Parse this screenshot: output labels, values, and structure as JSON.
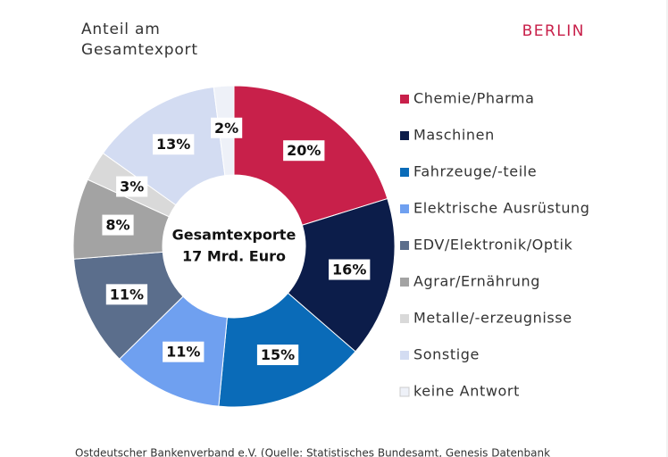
{
  "chart_data": {
    "type": "pie",
    "title_lines": [
      "Anteil am",
      "Gesamtexport"
    ],
    "region": "BERLIN",
    "center_text": [
      "Gesamtexporte",
      "17 Mrd. Euro"
    ],
    "categories": [
      "Chemie/Pharma",
      "Maschinen",
      "Fahrzeuge/-teile",
      "Elektrische Ausrüstung",
      "EDV/Elektronik/Optik",
      "Agrar/Ernährung",
      "Metalle/-erzeugnisse",
      "Sonstige",
      "keine Antwort"
    ],
    "values": [
      20,
      16,
      15,
      11,
      11,
      8,
      3,
      13,
      2
    ],
    "value_labels": [
      "20%",
      "16%",
      "15%",
      "11%",
      "11%",
      "8%",
      "3%",
      "13%",
      "2%"
    ],
    "colors": [
      "#c8204a",
      "#0c1d4a",
      "#0a6bb8",
      "#6fa0f0",
      "#5b6e8c",
      "#a3a3a3",
      "#d9d9d9",
      "#d3dcf2",
      "#eef1f8"
    ]
  },
  "source": "Ostdeutscher Bankenverband e.V. (Quelle: Statistisches Bundesamt, Genesis Datenbank"
}
